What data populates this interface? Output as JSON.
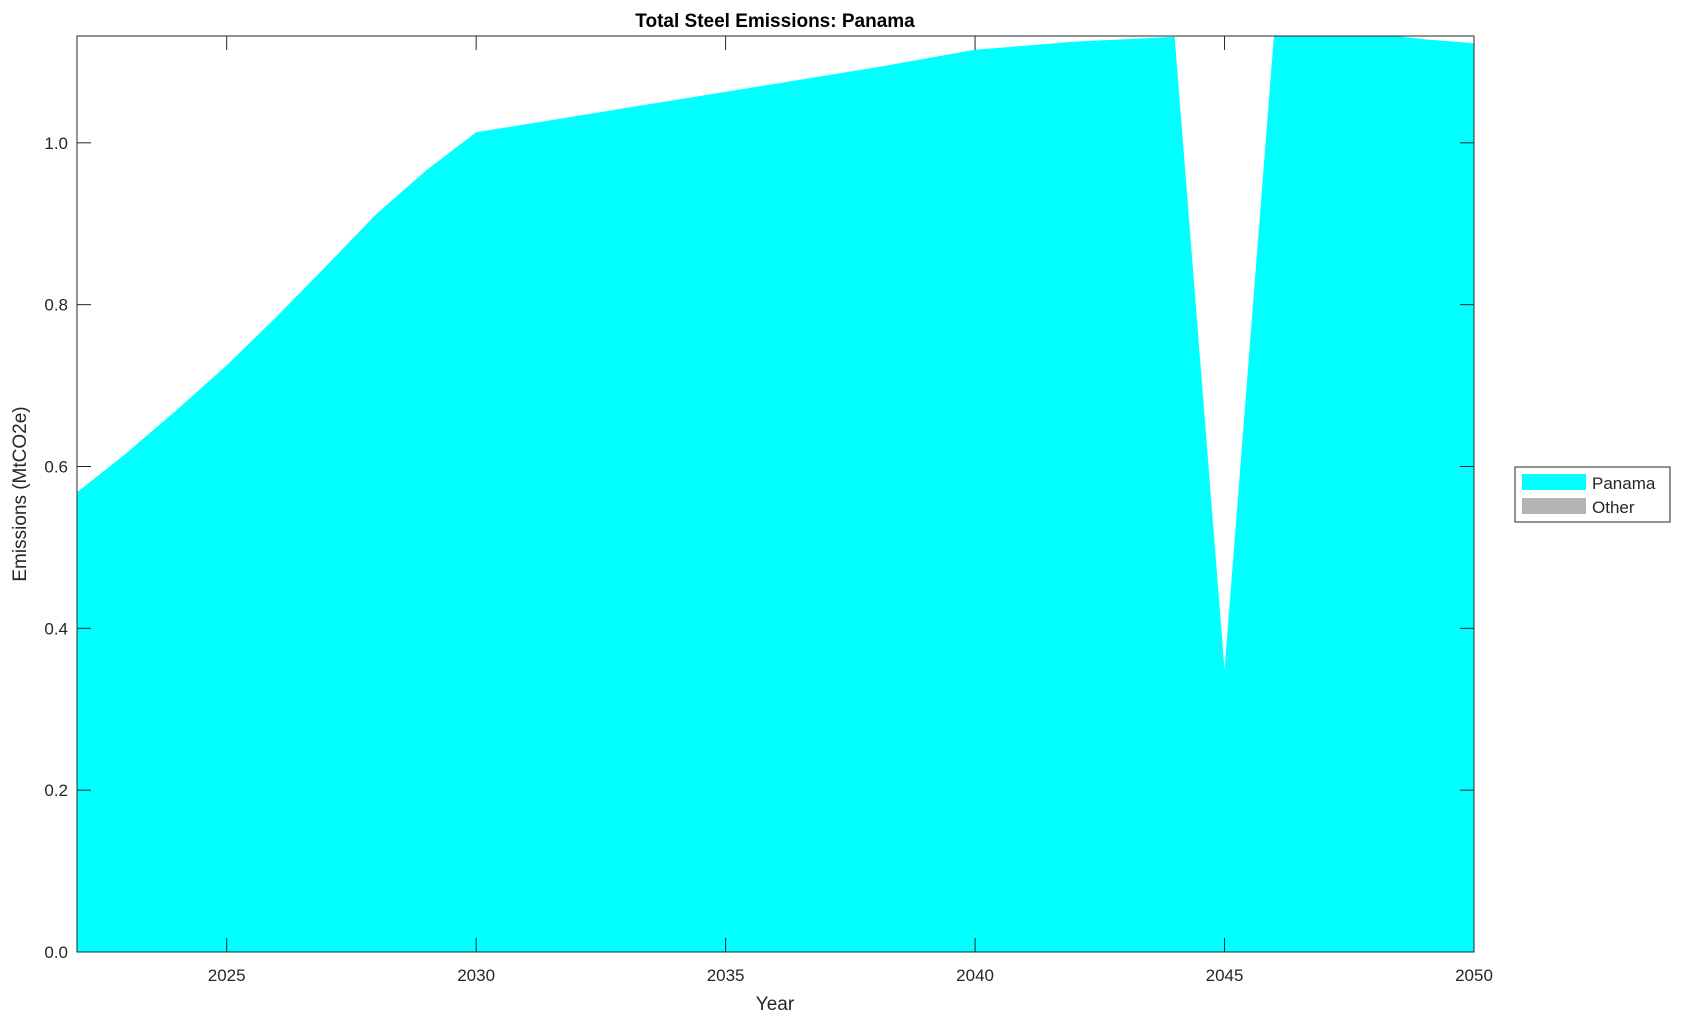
{
  "chart_data": {
    "type": "area",
    "title": "Total Steel Emissions: Panama",
    "xlabel": "Year",
    "ylabel": "Emissions (MtCO2e)",
    "xlim": [
      2022,
      2050
    ],
    "ylim": [
      0,
      1.132
    ],
    "xticks": [
      2025,
      2030,
      2035,
      2040,
      2045,
      2050
    ],
    "yticks": [
      0.0,
      0.2,
      0.4,
      0.6,
      0.8,
      1.0
    ],
    "grid": false,
    "legend_placement": "right",
    "x": [
      2022,
      2023,
      2024,
      2025,
      2026,
      2027,
      2028,
      2029,
      2030,
      2031,
      2032,
      2033,
      2034,
      2035,
      2036,
      2037,
      2038,
      2039,
      2040,
      2041,
      2042,
      2043,
      2044,
      2045,
      2046,
      2047,
      2048,
      2049,
      2050
    ],
    "series": [
      {
        "name": "Panama",
        "color": "#00FFFF",
        "values": [
          0.568,
          0.617,
          0.67,
          0.725,
          0.785,
          0.848,
          0.912,
          0.966,
          1.013,
          1.023,
          1.033,
          1.043,
          1.053,
          1.063,
          1.073,
          1.083,
          1.093,
          1.104,
          1.115,
          1.12,
          1.125,
          1.128,
          1.131,
          0.349,
          1.14,
          1.14,
          1.135,
          1.128,
          1.123
        ]
      },
      {
        "name": "Other",
        "color": "#B3B3B3",
        "values": [
          0,
          0,
          0,
          0,
          0,
          0,
          0,
          0,
          0,
          0,
          0,
          0,
          0,
          0,
          0,
          0,
          0,
          0,
          0,
          0,
          0,
          0,
          0,
          0,
          0,
          0,
          0,
          0,
          0
        ]
      }
    ]
  }
}
